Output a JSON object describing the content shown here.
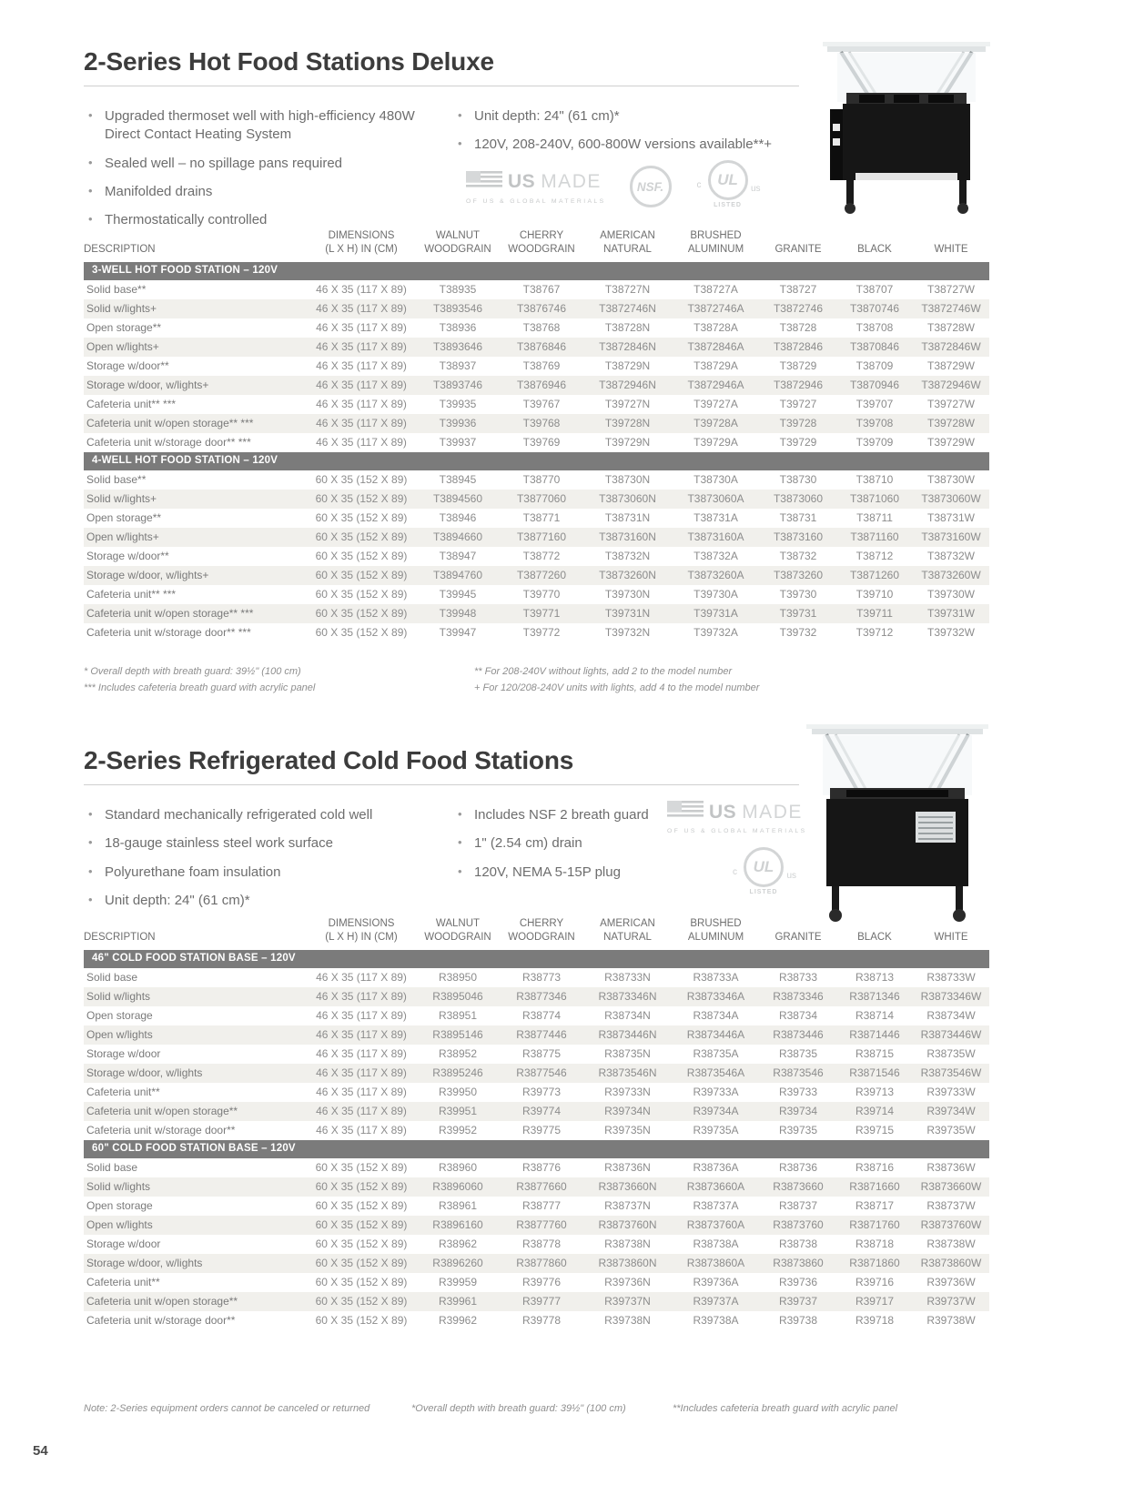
{
  "page_number": "54",
  "logos": {
    "usmade": {
      "us": "US",
      "made": "MADE",
      "tagline": "OF US & GLOBAL MATERIALS"
    },
    "nsf": "NSF.",
    "ul": {
      "c": "c",
      "mark": "UL",
      "us": "us",
      "listed": "LISTED"
    }
  },
  "hot": {
    "title": "2-Series Hot Food Stations Deluxe",
    "bullets_left": [
      "Upgraded thermoset well with high-efficiency 480W Direct Contact Heating System",
      "Sealed well – no spillage pans required",
      "Manifolded drains",
      "Thermostatically controlled"
    ],
    "bullets_right": [
      "Unit depth: 24\" (61 cm)*",
      "120V, 208-240V, 600-800W versions available**+"
    ],
    "footnotes_left": [
      "* Overall depth with breath guard: 39½\" (100 cm)",
      "*** Includes cafeteria breath guard with acrylic panel"
    ],
    "footnotes_right": [
      "** For 208-240V without lights, add 2 to the model number",
      "+ For 120/208-240V units with lights, add 4 to the model number"
    ],
    "table": {
      "headers": [
        [
          "",
          "DESCRIPTION"
        ],
        [
          "DIMENSIONS",
          "(L X H) IN (CM)"
        ],
        [
          "WALNUT",
          "WOODGRAIN"
        ],
        [
          "CHERRY",
          "WOODGRAIN"
        ],
        [
          "AMERICAN",
          "NATURAL"
        ],
        [
          "BRUSHED",
          "ALUMINUM"
        ],
        [
          "",
          "GRANITE"
        ],
        [
          "",
          "BLACK"
        ],
        [
          "",
          "WHITE"
        ]
      ],
      "groups": [
        {
          "label": "3-WELL HOT FOOD STATION – 120V",
          "rows": [
            [
              "Solid base**",
              "46 X 35 (117 X 89)",
              "T38935",
              "T38767",
              "T38727N",
              "T38727A",
              "T38727",
              "T38707",
              "T38727W"
            ],
            [
              "Solid w/lights+",
              "46 X 35 (117 X 89)",
              "T3893546",
              "T3876746",
              "T3872746N",
              "T3872746A",
              "T3872746",
              "T3870746",
              "T3872746W"
            ],
            [
              "Open storage**",
              "46 X 35 (117 X 89)",
              "T38936",
              "T38768",
              "T38728N",
              "T38728A",
              "T38728",
              "T38708",
              "T38728W"
            ],
            [
              "Open w/lights+",
              "46 X 35 (117 X 89)",
              "T3893646",
              "T3876846",
              "T3872846N",
              "T3872846A",
              "T3872846",
              "T3870846",
              "T3872846W"
            ],
            [
              "Storage w/door**",
              "46 X 35 (117 X 89)",
              "T38937",
              "T38769",
              "T38729N",
              "T38729A",
              "T38729",
              "T38709",
              "T38729W"
            ],
            [
              "Storage w/door, w/lights+",
              "46 X 35 (117 X 89)",
              "T3893746",
              "T3876946",
              "T3872946N",
              "T3872946A",
              "T3872946",
              "T3870946",
              "T3872946W"
            ],
            [
              "Cafeteria unit** ***",
              "46 X 35 (117 X 89)",
              "T39935",
              "T39767",
              "T39727N",
              "T39727A",
              "T39727",
              "T39707",
              "T39727W"
            ],
            [
              "Cafeteria unit w/open storage** ***",
              "46 X 35 (117 X 89)",
              "T39936",
              "T39768",
              "T39728N",
              "T39728A",
              "T39728",
              "T39708",
              "T39728W"
            ],
            [
              "Cafeteria unit w/storage door** ***",
              "46 X 35 (117 X 89)",
              "T39937",
              "T39769",
              "T39729N",
              "T39729A",
              "T39729",
              "T39709",
              "T39729W"
            ]
          ]
        },
        {
          "label": "4-WELL HOT FOOD STATION – 120V",
          "rows": [
            [
              "Solid base**",
              "60 X 35 (152 X 89)",
              "T38945",
              "T38770",
              "T38730N",
              "T38730A",
              "T38730",
              "T38710",
              "T38730W"
            ],
            [
              "Solid w/lights+",
              "60 X 35 (152 X 89)",
              "T3894560",
              "T3877060",
              "T3873060N",
              "T3873060A",
              "T3873060",
              "T3871060",
              "T3873060W"
            ],
            [
              "Open storage**",
              "60 X 35 (152 X 89)",
              "T38946",
              "T38771",
              "T38731N",
              "T38731A",
              "T38731",
              "T38711",
              "T38731W"
            ],
            [
              "Open w/lights+",
              "60 X 35 (152 X 89)",
              "T3894660",
              "T3877160",
              "T3873160N",
              "T3873160A",
              "T3873160",
              "T3871160",
              "T3873160W"
            ],
            [
              "Storage w/door**",
              "60 X 35 (152 X 89)",
              "T38947",
              "T38772",
              "T38732N",
              "T38732A",
              "T38732",
              "T38712",
              "T38732W"
            ],
            [
              "Storage w/door, w/lights+",
              "60 X 35 (152 X 89)",
              "T3894760",
              "T3877260",
              "T3873260N",
              "T3873260A",
              "T3873260",
              "T3871260",
              "T3873260W"
            ],
            [
              "Cafeteria unit** ***",
              "60 X 35 (152 X 89)",
              "T39945",
              "T39770",
              "T39730N",
              "T39730A",
              "T39730",
              "T39710",
              "T39730W"
            ],
            [
              "Cafeteria unit w/open storage** ***",
              "60 X 35 (152 X 89)",
              "T39948",
              "T39771",
              "T39731N",
              "T39731A",
              "T39731",
              "T39711",
              "T39731W"
            ],
            [
              "Cafeteria unit w/storage door** ***",
              "60 X 35 (152 X 89)",
              "T39947",
              "T39772",
              "T39732N",
              "T39732A",
              "T39732",
              "T39712",
              "T39732W"
            ]
          ]
        }
      ]
    }
  },
  "cold": {
    "title": "2-Series Refrigerated Cold Food Stations",
    "bullets_left": [
      "Standard mechanically refrigerated cold well",
      "18-gauge stainless steel work surface",
      "Polyurethane foam insulation",
      "Unit depth: 24\" (61 cm)*"
    ],
    "bullets_right": [
      "Includes NSF 2 breath guard",
      "1\" (2.54 cm) drain",
      "120V, NEMA 5-15P plug"
    ],
    "table": {
      "headers": [
        [
          "",
          "DESCRIPTION"
        ],
        [
          "DIMENSIONS",
          "(L X H) IN (CM)"
        ],
        [
          "WALNUT",
          "WOODGRAIN"
        ],
        [
          "CHERRY",
          "WOODGRAIN"
        ],
        [
          "AMERICAN",
          "NATURAL"
        ],
        [
          "BRUSHED",
          "ALUMINUM"
        ],
        [
          "",
          "GRANITE"
        ],
        [
          "",
          "BLACK"
        ],
        [
          "",
          "WHITE"
        ]
      ],
      "groups": [
        {
          "label": "46\" COLD FOOD STATION BASE – 120V",
          "rows": [
            [
              "Solid base",
              "46 X 35 (117 X 89)",
              "R38950",
              "R38773",
              "R38733N",
              "R38733A",
              "R38733",
              "R38713",
              "R38733W"
            ],
            [
              "Solid w/lights",
              "46 X 35 (117 X 89)",
              "R3895046",
              "R3877346",
              "R3873346N",
              "R3873346A",
              "R3873346",
              "R3871346",
              "R3873346W"
            ],
            [
              "Open storage",
              "46 X 35 (117 X 89)",
              "R38951",
              "R38774",
              "R38734N",
              "R38734A",
              "R38734",
              "R38714",
              "R38734W"
            ],
            [
              "Open w/lights",
              "46 X 35 (117 X 89)",
              "R3895146",
              "R3877446",
              "R3873446N",
              "R3873446A",
              "R3873446",
              "R3871446",
              "R3873446W"
            ],
            [
              "Storage w/door",
              "46 X 35 (117 X 89)",
              "R38952",
              "R38775",
              "R38735N",
              "R38735A",
              "R38735",
              "R38715",
              "R38735W"
            ],
            [
              "Storage w/door, w/lights",
              "46 X 35 (117 X 89)",
              "R3895246",
              "R3877546",
              "R3873546N",
              "R3873546A",
              "R3873546",
              "R3871546",
              "R3873546W"
            ],
            [
              "Cafeteria unit**",
              "46 X 35 (117 X 89)",
              "R39950",
              "R39773",
              "R39733N",
              "R39733A",
              "R39733",
              "R39713",
              "R39733W"
            ],
            [
              "Cafeteria unit w/open storage**",
              "46 X 35 (117 X 89)",
              "R39951",
              "R39774",
              "R39734N",
              "R39734A",
              "R39734",
              "R39714",
              "R39734W"
            ],
            [
              "Cafeteria unit w/storage door**",
              "46 X 35 (117 X 89)",
              "R39952",
              "R39775",
              "R39735N",
              "R39735A",
              "R39735",
              "R39715",
              "R39735W"
            ]
          ]
        },
        {
          "label": "60\" COLD FOOD STATION BASE – 120V",
          "rows": [
            [
              "Solid base",
              "60 X 35 (152 X 89)",
              "R38960",
              "R38776",
              "R38736N",
              "R38736A",
              "R38736",
              "R38716",
              "R38736W"
            ],
            [
              "Solid w/lights",
              "60 X 35 (152 X 89)",
              "R3896060",
              "R3877660",
              "R3873660N",
              "R3873660A",
              "R3873660",
              "R3871660",
              "R3873660W"
            ],
            [
              "Open storage",
              "60 X 35 (152 X 89)",
              "R38961",
              "R38777",
              "R38737N",
              "R38737A",
              "R38737",
              "R38717",
              "R38737W"
            ],
            [
              "Open w/lights",
              "60 X 35 (152 X 89)",
              "R3896160",
              "R3877760",
              "R3873760N",
              "R3873760A",
              "R3873760",
              "R3871760",
              "R3873760W"
            ],
            [
              "Storage w/door",
              "60 X 35 (152 X 89)",
              "R38962",
              "R38778",
              "R38738N",
              "R38738A",
              "R38738",
              "R38718",
              "R38738W"
            ],
            [
              "Storage w/door, w/lights",
              "60 X 35 (152 X 89)",
              "R3896260",
              "R3877860",
              "R3873860N",
              "R3873860A",
              "R3873860",
              "R3871860",
              "R3873860W"
            ],
            [
              "Cafeteria unit**",
              "60 X 35 (152 X 89)",
              "R39959",
              "R39776",
              "R39736N",
              "R39736A",
              "R39736",
              "R39716",
              "R39736W"
            ],
            [
              "Cafeteria unit w/open storage**",
              "60 X 35 (152 X 89)",
              "R39961",
              "R39777",
              "R39737N",
              "R39737A",
              "R39737",
              "R39717",
              "R39737W"
            ],
            [
              "Cafeteria unit w/storage door**",
              "60 X 35 (152 X 89)",
              "R39962",
              "R39778",
              "R39738N",
              "R39738A",
              "R39738",
              "R39718",
              "R39738W"
            ]
          ]
        }
      ]
    }
  },
  "bottom_notes": [
    "Note: 2-Series equipment orders cannot be canceled or returned",
    "*Overall depth with breath guard: 39½\" (100 cm)",
    "**Includes cafeteria breath guard with acrylic panel"
  ]
}
